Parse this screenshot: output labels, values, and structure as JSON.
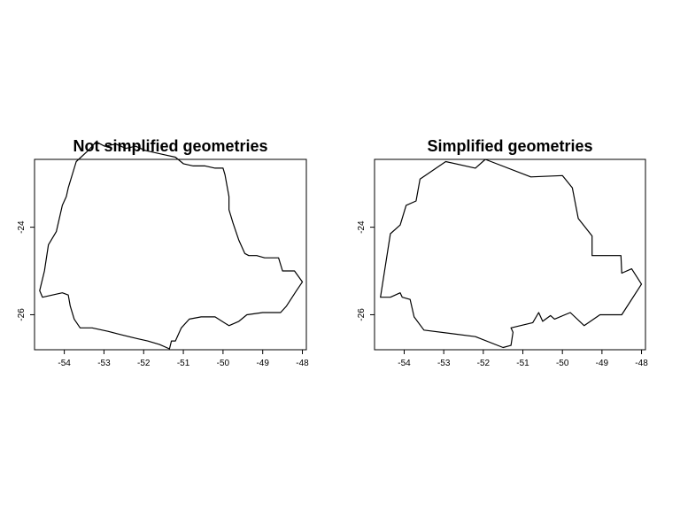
{
  "chart_data": [
    {
      "type": "map",
      "title": "Not simplified geometries",
      "xlabel": "",
      "ylabel": "",
      "xlim": [
        -54.75,
        -47.9
      ],
      "ylim": [
        -26.8,
        -22.45
      ],
      "xticks": [
        -54,
        -53,
        -52,
        -51,
        -50,
        -49,
        -48
      ],
      "yticks": [
        -24,
        -26
      ],
      "grid": false,
      "outline": [
        [
          -54.62,
          -25.45
        ],
        [
          -54.5,
          -25.0
        ],
        [
          -54.4,
          -24.4
        ],
        [
          -54.2,
          -24.1
        ],
        [
          -54.05,
          -23.5
        ],
        [
          -53.95,
          -23.3
        ],
        [
          -53.9,
          -23.1
        ],
        [
          -53.7,
          -22.5
        ],
        [
          -53.4,
          -22.25
        ],
        [
          -53.2,
          -22.05
        ],
        [
          -52.98,
          -22.15
        ],
        [
          -52.7,
          -22.1
        ],
        [
          -52.45,
          -22.2
        ],
        [
          -52.2,
          -22.15
        ],
        [
          -51.95,
          -22.25
        ],
        [
          -51.7,
          -22.3
        ],
        [
          -51.45,
          -22.35
        ],
        [
          -51.2,
          -22.4
        ],
        [
          -51.0,
          -22.55
        ],
        [
          -50.75,
          -22.6
        ],
        [
          -50.45,
          -22.6
        ],
        [
          -50.2,
          -22.65
        ],
        [
          -50.0,
          -22.65
        ],
        [
          -49.95,
          -22.8
        ],
        [
          -49.85,
          -23.3
        ],
        [
          -49.85,
          -23.6
        ],
        [
          -49.75,
          -23.9
        ],
        [
          -49.6,
          -24.3
        ],
        [
          -49.45,
          -24.6
        ],
        [
          -49.35,
          -24.65
        ],
        [
          -49.15,
          -24.65
        ],
        [
          -48.95,
          -24.7
        ],
        [
          -48.6,
          -24.7
        ],
        [
          -48.5,
          -25.0
        ],
        [
          -48.2,
          -25.0
        ],
        [
          -48.0,
          -25.25
        ],
        [
          -48.15,
          -25.45
        ],
        [
          -48.4,
          -25.8
        ],
        [
          -48.55,
          -25.95
        ],
        [
          -49.0,
          -25.95
        ],
        [
          -49.4,
          -26.0
        ],
        [
          -49.6,
          -26.15
        ],
        [
          -49.85,
          -26.25
        ],
        [
          -50.2,
          -26.05
        ],
        [
          -50.55,
          -26.05
        ],
        [
          -50.85,
          -26.1
        ],
        [
          -51.05,
          -26.3
        ],
        [
          -51.2,
          -26.6
        ],
        [
          -51.3,
          -26.6
        ],
        [
          -51.35,
          -26.78
        ],
        [
          -51.6,
          -26.68
        ],
        [
          -51.9,
          -26.6
        ],
        [
          -52.15,
          -26.55
        ],
        [
          -52.6,
          -26.45
        ],
        [
          -52.9,
          -26.38
        ],
        [
          -53.3,
          -26.3
        ],
        [
          -53.6,
          -26.3
        ],
        [
          -53.75,
          -26.1
        ],
        [
          -53.85,
          -25.8
        ],
        [
          -53.9,
          -25.55
        ],
        [
          -54.05,
          -25.5
        ],
        [
          -54.3,
          -25.55
        ],
        [
          -54.55,
          -25.6
        ],
        [
          -54.62,
          -25.45
        ]
      ]
    },
    {
      "type": "map",
      "title": "Simplified geometries",
      "xlabel": "",
      "ylabel": "",
      "xlim": [
        -54.75,
        -47.9
      ],
      "ylim": [
        -26.8,
        -22.45
      ],
      "xticks": [
        -54,
        -53,
        -52,
        -51,
        -50,
        -49,
        -48
      ],
      "yticks": [
        -24,
        -26
      ],
      "grid": false,
      "outline": [
        [
          -54.6,
          -25.6
        ],
        [
          -54.35,
          -24.15
        ],
        [
          -54.1,
          -23.95
        ],
        [
          -53.95,
          -23.5
        ],
        [
          -53.7,
          -23.4
        ],
        [
          -53.6,
          -22.9
        ],
        [
          -52.95,
          -22.5
        ],
        [
          -52.2,
          -22.65
        ],
        [
          -51.95,
          -22.45
        ],
        [
          -50.8,
          -22.85
        ],
        [
          -50.0,
          -22.82
        ],
        [
          -49.75,
          -23.1
        ],
        [
          -49.6,
          -23.8
        ],
        [
          -49.25,
          -24.2
        ],
        [
          -49.25,
          -24.65
        ],
        [
          -48.52,
          -24.65
        ],
        [
          -48.5,
          -25.05
        ],
        [
          -48.25,
          -24.95
        ],
        [
          -48.0,
          -25.3
        ],
        [
          -48.5,
          -26.0
        ],
        [
          -49.05,
          -26.0
        ],
        [
          -49.45,
          -26.25
        ],
        [
          -49.8,
          -25.95
        ],
        [
          -50.2,
          -26.1
        ],
        [
          -50.3,
          -26.02
        ],
        [
          -50.5,
          -26.15
        ],
        [
          -50.6,
          -25.95
        ],
        [
          -50.75,
          -26.18
        ],
        [
          -51.3,
          -26.3
        ],
        [
          -51.25,
          -26.4
        ],
        [
          -51.3,
          -26.7
        ],
        [
          -51.5,
          -26.75
        ],
        [
          -52.2,
          -26.5
        ],
        [
          -53.5,
          -26.35
        ],
        [
          -53.75,
          -26.05
        ],
        [
          -53.85,
          -25.65
        ],
        [
          -54.05,
          -25.6
        ],
        [
          -54.1,
          -25.5
        ],
        [
          -54.35,
          -25.6
        ],
        [
          -54.6,
          -25.6
        ]
      ]
    }
  ]
}
